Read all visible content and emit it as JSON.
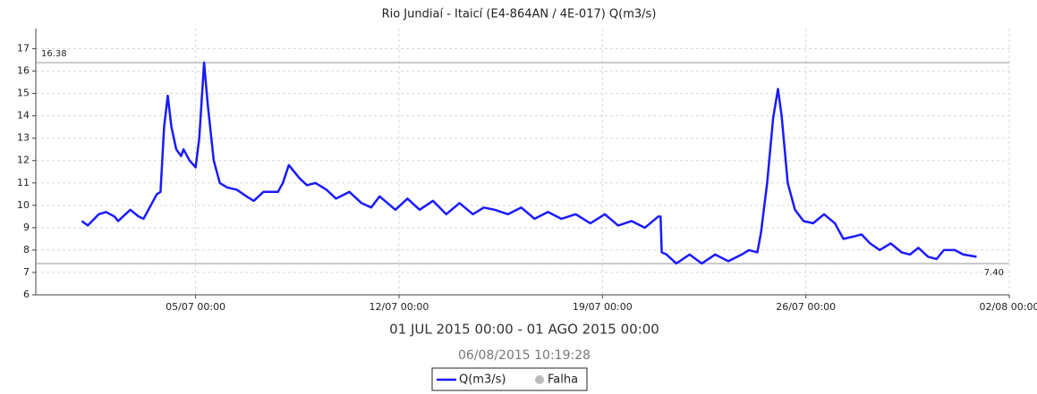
{
  "chart_data": {
    "type": "line",
    "title": "Rio Jundiaí - Itaicí (E4-864AN / 4E-017) Q(m3/s)",
    "subtitle": "01 JUL 2015 00:00 - 01 AGO 2015 00:00",
    "timestamp": "06/08/2015 10:19:28",
    "x": [
      "2015-07-01T02:00",
      "2015-07-01T07:00",
      "2015-07-01T16:00",
      "2015-07-01T22:00",
      "2015-07-02T05:00",
      "2015-07-02T08:00",
      "2015-07-02T18:00",
      "2015-07-03T01:00",
      "2015-07-03T05:00",
      "2015-07-03T11:00",
      "2015-07-03T16:00",
      "2015-07-03T19:00",
      "2015-07-03T22:00",
      "2015-07-04T01:00",
      "2015-07-04T04:00",
      "2015-07-04T08:00",
      "2015-07-04T12:00",
      "2015-07-04T14:00",
      "2015-07-04T19:00",
      "2015-07-05T00:00",
      "2015-07-05T03:00",
      "2015-07-05T07:00",
      "2015-07-05T10:00",
      "2015-07-05T15:00",
      "2015-07-05T20:00",
      "2015-07-06T02:00",
      "2015-07-06T10:00",
      "2015-07-06T18:00",
      "2015-07-07T00:00",
      "2015-07-07T08:00",
      "2015-07-07T20:00",
      "2015-07-08T00:00",
      "2015-07-08T05:00",
      "2015-07-08T14:00",
      "2015-07-08T20:00",
      "2015-07-09T03:00",
      "2015-07-09T12:00",
      "2015-07-09T20:00",
      "2015-07-10T07:00",
      "2015-07-10T17:00",
      "2015-07-11T01:00",
      "2015-07-11T08:00",
      "2015-07-11T21:00",
      "2015-07-12T07:00",
      "2015-07-12T17:00",
      "2015-07-13T04:00",
      "2015-07-13T15:00",
      "2015-07-14T02:00",
      "2015-07-14T13:00",
      "2015-07-14T22:00",
      "2015-07-15T07:00",
      "2015-07-15T18:00",
      "2015-07-16T05:00",
      "2015-07-16T16:00",
      "2015-07-17T03:00",
      "2015-07-17T14:00",
      "2015-07-18T02:00",
      "2015-07-18T14:00",
      "2015-07-19T02:00",
      "2015-07-19T13:00",
      "2015-07-20T00:00",
      "2015-07-20T11:00",
      "2015-07-20T22:00",
      "2015-07-21T00:00",
      "2015-07-21T01:00",
      "2015-07-21T05:00",
      "2015-07-21T13:00",
      "2015-07-22T00:00",
      "2015-07-22T10:00",
      "2015-07-22T21:00",
      "2015-07-23T08:00",
      "2015-07-23T19:00",
      "2015-07-24T01:00",
      "2015-07-24T08:00",
      "2015-07-24T11:00",
      "2015-07-24T16:00",
      "2015-07-24T21:00",
      "2015-07-25T01:00",
      "2015-07-25T04:00",
      "2015-07-25T09:00",
      "2015-07-25T15:00",
      "2015-07-25T22:00",
      "2015-07-26T06:00",
      "2015-07-26T15:00",
      "2015-07-27T00:00",
      "2015-07-27T07:00",
      "2015-07-27T15:00",
      "2015-07-27T22:00",
      "2015-07-28T05:00",
      "2015-07-28T13:00",
      "2015-07-28T22:00",
      "2015-07-29T07:00",
      "2015-07-29T14:00",
      "2015-07-29T21:00",
      "2015-07-30T05:00",
      "2015-07-30T12:00",
      "2015-07-30T18:00",
      "2015-07-31T03:00",
      "2015-07-31T10:00",
      "2015-07-31T21:00"
    ],
    "series": [
      {
        "name": "Q(m3/s)",
        "color": "#1a1aff",
        "values": [
          9.3,
          9.1,
          9.6,
          9.7,
          9.5,
          9.3,
          9.8,
          9.5,
          9.4,
          10.0,
          10.5,
          10.6,
          13.5,
          14.9,
          13.5,
          12.5,
          12.2,
          12.5,
          12.0,
          11.7,
          13.0,
          16.38,
          14.5,
          12.0,
          11.0,
          10.8,
          10.7,
          10.4,
          10.2,
          10.6,
          10.6,
          11.0,
          11.8,
          11.2,
          10.9,
          11.0,
          10.7,
          10.3,
          10.6,
          10.1,
          9.9,
          10.4,
          9.8,
          10.3,
          9.8,
          10.2,
          9.6,
          10.1,
          9.6,
          9.9,
          9.8,
          9.6,
          9.9,
          9.4,
          9.7,
          9.4,
          9.6,
          9.2,
          9.6,
          9.1,
          9.3,
          9.0,
          9.5,
          9.5,
          7.9,
          7.8,
          7.4,
          7.8,
          7.4,
          7.8,
          7.5,
          7.8,
          8.0,
          7.9,
          8.8,
          11.0,
          13.9,
          15.2,
          14.0,
          11.0,
          9.8,
          9.3,
          9.2,
          9.6,
          9.2,
          8.5,
          8.6,
          8.7,
          8.3,
          8.0,
          8.3,
          7.9,
          7.8,
          8.1,
          7.7,
          7.6,
          8.0,
          8.0,
          7.8,
          7.7
        ]
      }
    ],
    "failure_marker": {
      "name": "Falha",
      "color": "#bbbbbb"
    },
    "reference_lines": [
      {
        "value": 16.38,
        "label": "16.38"
      },
      {
        "value": 7.4,
        "label": "7.40"
      }
    ],
    "xlim": [
      "2015-06-29T12:00",
      "2015-08-02T00:00"
    ],
    "xticks": [
      {
        "value": "2015-07-05T00:00",
        "label": "05/07 00:00"
      },
      {
        "value": "2015-07-12T00:00",
        "label": "12/07 00:00"
      },
      {
        "value": "2015-07-19T00:00",
        "label": "19/07 00:00"
      },
      {
        "value": "2015-07-26T00:00",
        "label": "26/07 00:00"
      },
      {
        "value": "2015-08-02T00:00",
        "label": "02/08 00:00"
      }
    ],
    "ylim": [
      6,
      17.9
    ],
    "yticks": [
      6,
      7,
      8,
      9,
      10,
      11,
      12,
      13,
      14,
      15,
      16,
      17
    ],
    "grid": true
  }
}
